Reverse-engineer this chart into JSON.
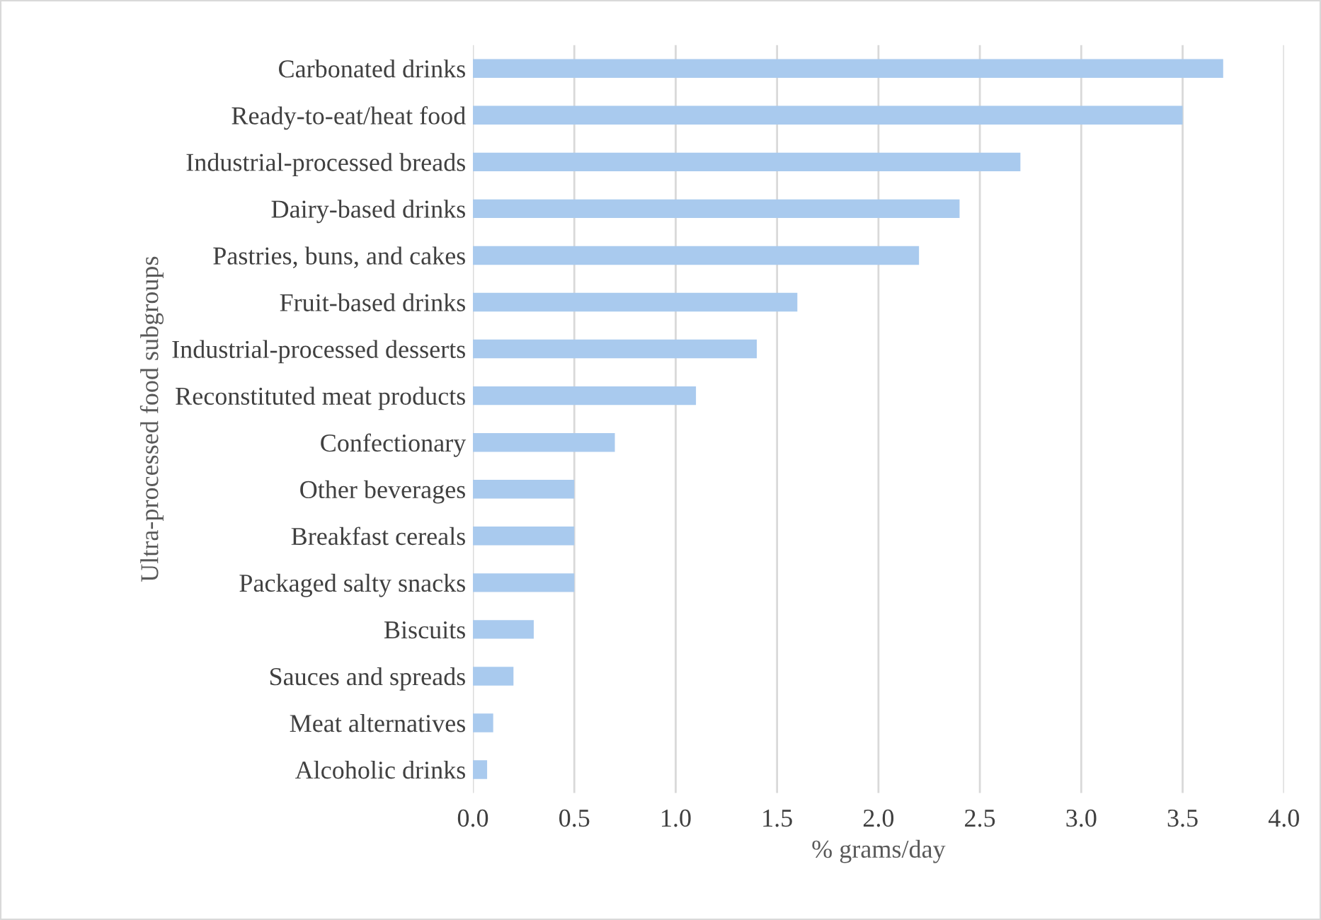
{
  "chart_data": {
    "type": "bar",
    "orientation": "horizontal",
    "categories": [
      "Carbonated drinks",
      "Ready-to-eat/heat food",
      "Industrial-processed breads",
      "Dairy-based drinks",
      "Pastries, buns, and cakes",
      "Fruit-based drinks",
      "Industrial-processed desserts",
      "Reconstituted meat products",
      "Confectionary",
      "Other beverages",
      "Breakfast cereals",
      "Packaged salty snacks",
      "Biscuits",
      "Sauces and spreads",
      "Meat alternatives",
      "Alcoholic drinks"
    ],
    "values": [
      3.7,
      3.5,
      2.7,
      2.4,
      2.2,
      1.6,
      1.4,
      1.1,
      0.7,
      0.5,
      0.5,
      0.5,
      0.3,
      0.2,
      0.1,
      0.07
    ],
    "color": "#a9caee",
    "xlabel": "% grams/day",
    "ylabel": "Ultra-processed food subgroups",
    "xlim": [
      0,
      4.0
    ],
    "xticks": [
      {
        "value": 0,
        "label": "0.0"
      },
      {
        "value": 0.5,
        "label": "0.5"
      },
      {
        "value": 1.0,
        "label": "1.0"
      },
      {
        "value": 1.5,
        "label": "1.5"
      },
      {
        "value": 2.0,
        "label": "2.0"
      },
      {
        "value": 2.5,
        "label": "2.5"
      },
      {
        "value": 3.0,
        "label": "3.0"
      },
      {
        "value": 3.5,
        "label": "3.5"
      },
      {
        "value": 4.0,
        "label": "4.0"
      }
    ],
    "grid": "x"
  }
}
